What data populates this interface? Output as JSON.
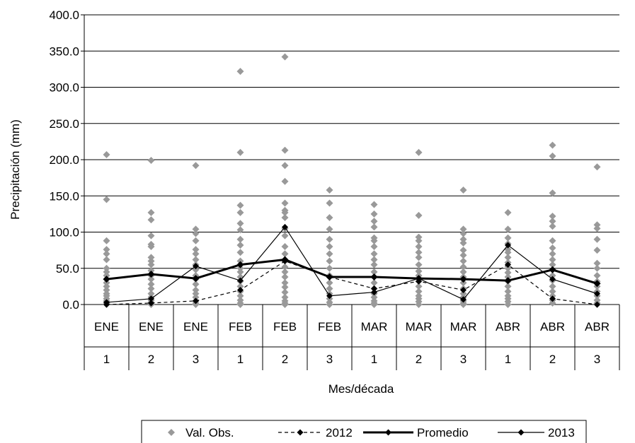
{
  "chart_data": {
    "type": "line",
    "title": "",
    "xlabel": "Mes/década",
    "ylabel": "Precipitación (mm)",
    "ylim": [
      0,
      400
    ],
    "yticks": [
      "0.0",
      "50.0",
      "100.0",
      "150.0",
      "200.0",
      "250.0",
      "300.0",
      "350.0",
      "400.0"
    ],
    "grid": true,
    "legend_position": "bottom",
    "categories": [
      {
        "month": "ENE",
        "decade": "1"
      },
      {
        "month": "ENE",
        "decade": "2"
      },
      {
        "month": "ENE",
        "decade": "3"
      },
      {
        "month": "FEB",
        "decade": "1"
      },
      {
        "month": "FEB",
        "decade": "2"
      },
      {
        "month": "FEB",
        "decade": "3"
      },
      {
        "month": "MAR",
        "decade": "1"
      },
      {
        "month": "MAR",
        "decade": "2"
      },
      {
        "month": "MAR",
        "decade": "3"
      },
      {
        "month": "ABR",
        "decade": "1"
      },
      {
        "month": "ABR",
        "decade": "2"
      },
      {
        "month": "ABR",
        "decade": "3"
      }
    ],
    "observed": {
      "name": "Val. Obs.",
      "color": "#999999",
      "values": [
        [
          207,
          145,
          88,
          76,
          70,
          62,
          50,
          45,
          40,
          35,
          30,
          25,
          20,
          15,
          12,
          8,
          5,
          2,
          0
        ],
        [
          199,
          127,
          117,
          95,
          83,
          80,
          65,
          60,
          55,
          47,
          40,
          35,
          28,
          22,
          15,
          10,
          6,
          3,
          0
        ],
        [
          192,
          104,
          98,
          88,
          76,
          70,
          62,
          55,
          48,
          40,
          35,
          28,
          20,
          15,
          10,
          5,
          2,
          0
        ],
        [
          322,
          210,
          137,
          127,
          112,
          103,
          90,
          82,
          72,
          60,
          50,
          45,
          38,
          32,
          25,
          18,
          12,
          6,
          2,
          0
        ],
        [
          342,
          213,
          192,
          170,
          140,
          130,
          127,
          120,
          105,
          95,
          80,
          70,
          60,
          52,
          45,
          38,
          30,
          24,
          17,
          10,
          5,
          2,
          0
        ],
        [
          158,
          140,
          120,
          104,
          90,
          80,
          70,
          60,
          50,
          40,
          30,
          22,
          15,
          8,
          3,
          0
        ],
        [
          138,
          125,
          115,
          107,
          92,
          88,
          80,
          70,
          62,
          55,
          45,
          38,
          30,
          22,
          15,
          10,
          5,
          2,
          0
        ],
        [
          210,
          123,
          93,
          88,
          80,
          72,
          65,
          55,
          46,
          40,
          32,
          25,
          18,
          12,
          8,
          4,
          0
        ],
        [
          158,
          104,
          98,
          90,
          85,
          75,
          68,
          60,
          52,
          45,
          38,
          30,
          22,
          15,
          10,
          5,
          2,
          0
        ],
        [
          127,
          104,
          92,
          84,
          76,
          72,
          65,
          58,
          50,
          44,
          38,
          32,
          25,
          18,
          12,
          8,
          4,
          0
        ],
        [
          220,
          205,
          154,
          122,
          115,
          108,
          88,
          78,
          70,
          62,
          55,
          48,
          40,
          33,
          25,
          18,
          12,
          6,
          2
        ],
        [
          190,
          110,
          105,
          90,
          75,
          57,
          50,
          40,
          32,
          25,
          18,
          12,
          6,
          2,
          0
        ]
      ]
    },
    "series": [
      {
        "name": "2012",
        "style": "dashed",
        "color": "#000000",
        "values": [
          0,
          2,
          5,
          20,
          60,
          38,
          22,
          32,
          20,
          55,
          8,
          0
        ]
      },
      {
        "name": "Promedio",
        "style": "thick",
        "color": "#000000",
        "values": [
          35,
          42,
          36,
          55,
          62,
          38,
          38,
          36,
          35,
          33,
          48,
          29
        ]
      },
      {
        "name": "2013",
        "style": "solid",
        "color": "#000000",
        "values": [
          3,
          8,
          53,
          33,
          107,
          12,
          17,
          36,
          7,
          82,
          35,
          15
        ]
      }
    ]
  }
}
